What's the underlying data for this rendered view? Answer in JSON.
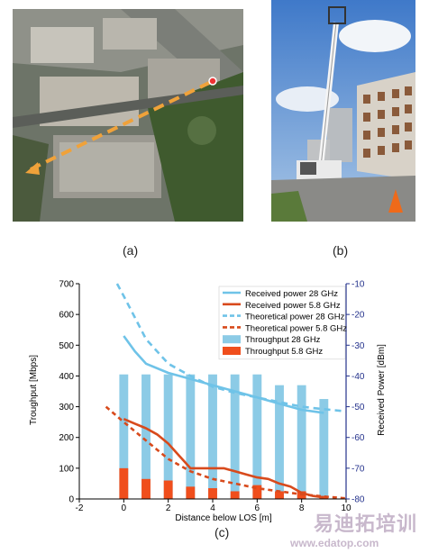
{
  "captions": {
    "a": "(a)",
    "b": "(b)",
    "c": "(c)"
  },
  "colors": {
    "throughput_28": "#8ccbe6",
    "throughput_58": "#f04e1c",
    "power_28": "#6fc3e8",
    "power_58": "#d84a1c",
    "right_axis": "#24328c"
  },
  "watermark": {
    "cn": "易迪拓培训",
    "url": "www.edatop.com"
  },
  "chart_data": {
    "type": "bar",
    "xlabel": "Distance below LOS [m]",
    "ylabel_left": "Troughput [Mbps]",
    "ylabel_right": "Received Power [dBm]",
    "xlim": [
      -2,
      10
    ],
    "ylim_left": [
      0,
      700
    ],
    "ylim_right": [
      -80,
      -10
    ],
    "x_ticks": [
      "-2",
      "0",
      "2",
      "4",
      "6",
      "8",
      "10"
    ],
    "y_left_ticks": [
      "0",
      "100",
      "200",
      "300",
      "400",
      "500",
      "600",
      "700"
    ],
    "y_right_ticks": [
      "-80",
      "-70",
      "-60",
      "-50",
      "-40",
      "-30",
      "-20",
      "-10"
    ],
    "legend_position": "top-right",
    "bar_x": [
      0,
      1,
      2,
      3,
      4,
      5,
      6,
      7,
      8,
      9
    ],
    "series": [
      {
        "name": "Received power 28 GHz",
        "kind": "line",
        "axis": "right",
        "x": [
          0,
          0.5,
          1,
          2,
          3,
          4,
          5,
          6,
          7,
          8,
          9
        ],
        "y": [
          -27,
          -32,
          -36,
          -39,
          -41,
          -43,
          -45,
          -47,
          -49,
          -51,
          -52
        ]
      },
      {
        "name": "Received power 5.8 GHz",
        "kind": "line",
        "axis": "right",
        "x": [
          0,
          0.5,
          1,
          1.5,
          2,
          2.5,
          3,
          3.5,
          4,
          4.5,
          5,
          5.5,
          6,
          6.5,
          7,
          7.5,
          8,
          8.5,
          9
        ],
        "y": [
          -54,
          -55.5,
          -57,
          -59,
          -62,
          -66,
          -70,
          -70,
          -70,
          -70,
          -71,
          -72,
          -73,
          -73.5,
          -75,
          -76,
          -78,
          -79,
          -79.5
        ]
      },
      {
        "name": "Theoretical power 28 GHz",
        "kind": "dashed",
        "axis": "right",
        "x": [
          -0.3,
          0,
          0.5,
          1,
          1.5,
          2,
          3,
          4,
          5,
          6,
          7,
          8,
          9,
          10
        ],
        "y": [
          -10,
          -14,
          -21,
          -28,
          -32,
          -36,
          -40,
          -43.5,
          -45.5,
          -47,
          -48.5,
          -50,
          -50.8,
          -51.5
        ]
      },
      {
        "name": "Theoretical power 5.8 GHz",
        "kind": "dashed",
        "axis": "right",
        "x": [
          -0.8,
          0,
          1,
          2,
          3,
          4,
          5,
          6,
          7,
          8,
          9,
          10
        ],
        "y": [
          -50,
          -55,
          -61,
          -67,
          -71,
          -73.5,
          -75,
          -76.5,
          -77.5,
          -78.5,
          -79.2,
          -79.8
        ]
      },
      {
        "name": "Throughput 28 GHz",
        "kind": "bar",
        "axis": "left",
        "values": [
          405,
          405,
          405,
          405,
          405,
          405,
          405,
          370,
          370,
          325
        ]
      },
      {
        "name": "Throughput 5.8 GHz",
        "kind": "bar",
        "axis": "left",
        "values": [
          100,
          65,
          60,
          40,
          35,
          25,
          45,
          25,
          25,
          10
        ]
      }
    ]
  }
}
